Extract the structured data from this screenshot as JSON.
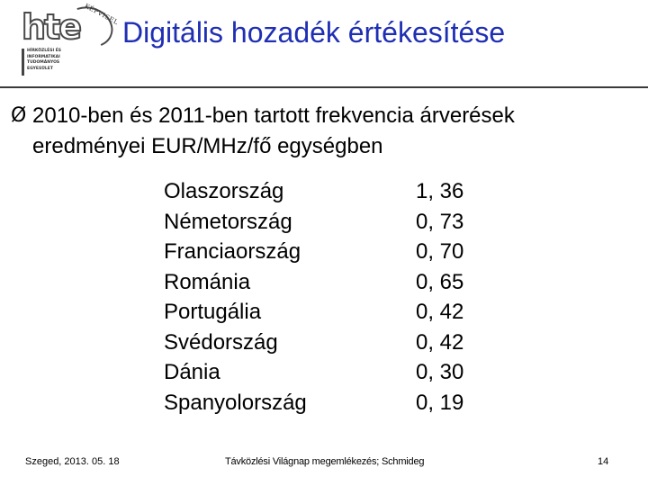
{
  "logo": {
    "word": "hte",
    "tagline": "KÉPVISEL",
    "lines": [
      "HÍRKÖZLÉSI ÉS",
      "INFORMATIKAI",
      "TUDOMÁNYOS",
      "EGYESÜLET"
    ]
  },
  "title": "Digitális hozadék értékesítése",
  "bullet": {
    "mark": "Ø",
    "line1": "2010-ben és 2011-ben tartott frekvencia árverések",
    "line2": "eredményei EUR/MHz/fő egységben"
  },
  "table": {
    "rows": [
      {
        "country": "Olaszország",
        "value": "1, 36"
      },
      {
        "country": "Németország",
        "value": "0, 73"
      },
      {
        "country": "Franciaország",
        "value": "0, 70"
      },
      {
        "country": "Románia",
        "value": "0, 65"
      },
      {
        "country": "Portugália",
        "value": "0, 42"
      },
      {
        "country": "Svédország",
        "value": "0, 42"
      },
      {
        "country": "Dánia",
        "value": "0, 30"
      },
      {
        "country": "Spanyolország",
        "value": "0, 19"
      }
    ]
  },
  "footer": {
    "left": "Szeged, 2013. 05. 18",
    "center": "Távközlési Világnap megemlékezés; Schmideg",
    "page": "14"
  }
}
